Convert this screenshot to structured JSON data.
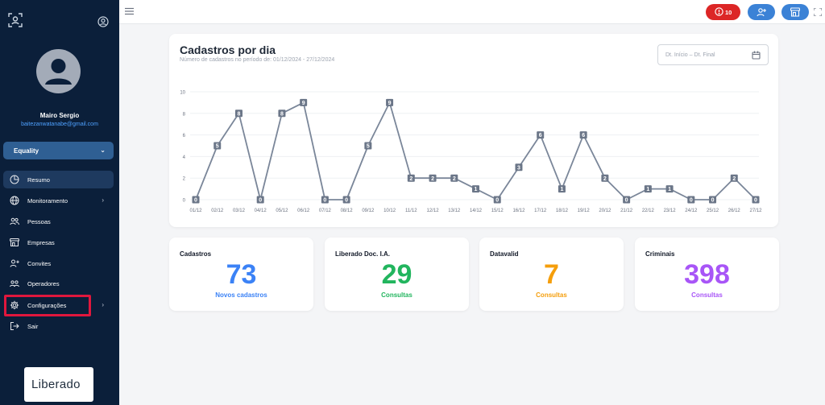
{
  "sidebar": {
    "user": {
      "name": "Mairo Sergio",
      "email": "baitezanwatanabe@gmail.com"
    },
    "company": "Equality",
    "items": [
      {
        "label": "Resumo",
        "icon": "pie-chart-icon",
        "active": true,
        "has_submenu": false
      },
      {
        "label": "Monitoramento",
        "icon": "globe-icon",
        "active": false,
        "has_submenu": true
      },
      {
        "label": "Pessoas",
        "icon": "people-icon",
        "active": false,
        "has_submenu": false
      },
      {
        "label": "Empresas",
        "icon": "store-icon",
        "active": false,
        "has_submenu": false
      },
      {
        "label": "Convites",
        "icon": "person-add-icon",
        "active": false,
        "has_submenu": false
      },
      {
        "label": "Operadores",
        "icon": "operators-icon",
        "active": false,
        "has_submenu": false
      },
      {
        "label": "Configurações",
        "icon": "gear-icon",
        "active": false,
        "has_submenu": true
      },
      {
        "label": "Sair",
        "icon": "logout-icon",
        "active": false,
        "has_submenu": false
      }
    ],
    "brand": "Liberado"
  },
  "topbar": {
    "alert_count": "10"
  },
  "colors": {
    "sidebar_bg": "#0b1f3a",
    "active_item": "#1e3a5f",
    "accent_blue": "#3b82d6",
    "alert_red": "#dc2626",
    "highlight_red": "#e0173d",
    "line": "#7a8699"
  },
  "chart": {
    "title": "Cadastros por dia",
    "subtitle": "Número de cadastros no período de: 01/12/2024 - 27/12/2024",
    "date_start_placeholder": "Dt. Início",
    "date_separator": "–",
    "date_end_placeholder": "Dt. Final"
  },
  "chart_data": {
    "type": "line",
    "categories": [
      "01/12",
      "02/12",
      "03/12",
      "04/12",
      "05/12",
      "06/12",
      "07/12",
      "08/12",
      "09/12",
      "10/12",
      "11/12",
      "12/12",
      "13/12",
      "14/12",
      "15/12",
      "16/12",
      "17/12",
      "18/12",
      "19/12",
      "20/12",
      "21/12",
      "22/12",
      "23/12",
      "24/12",
      "25/12",
      "26/12",
      "27/12"
    ],
    "values": [
      0,
      5,
      8,
      0,
      8,
      9,
      0,
      0,
      5,
      9,
      2,
      2,
      2,
      1,
      0,
      3,
      6,
      1,
      6,
      2,
      0,
      1,
      1,
      0,
      0,
      2,
      0
    ],
    "yticks": [
      0,
      2,
      4,
      6,
      8,
      10
    ],
    "ylim": [
      0,
      10
    ],
    "grid": true,
    "data_labels": true
  },
  "stats": [
    {
      "title": "Cadastros",
      "value": "73",
      "label": "Novos cadastros",
      "color": "#3b82f6"
    },
    {
      "title": "Liberado Doc. I.A.",
      "value": "29",
      "label": "Consultas",
      "color": "#22b55e"
    },
    {
      "title": "Datavalid",
      "value": "7",
      "label": "Consultas",
      "color": "#f59e0b"
    },
    {
      "title": "Criminais",
      "value": "398",
      "label": "Consultas",
      "color": "#a855f7"
    }
  ]
}
